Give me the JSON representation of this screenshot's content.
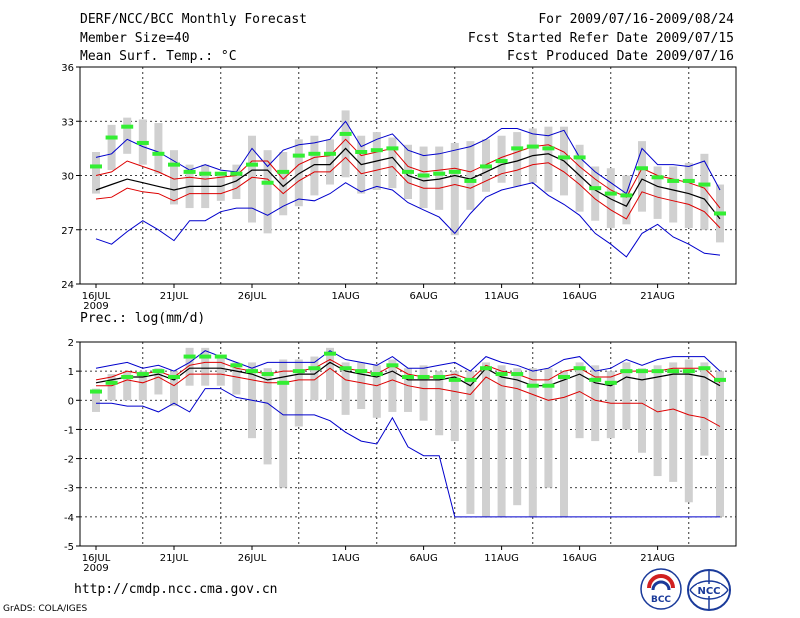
{
  "header": {
    "title": "DERF/NCC/BCC Monthly Forecast",
    "member_size": "Member Size=40",
    "variable": "Mean Surf. Temp.: °C",
    "period": "For 2009/07/16-2009/08/24",
    "started": "Fcst Started Refer Date 2009/07/15",
    "produced": "Fcst Produced Date 2009/07/16"
  },
  "footer": {
    "url": "http://cmdp.ncc.cma.gov.cn",
    "grads": "GrADS: COLA/IGES",
    "logo_bcc": "BCC",
    "logo_ncc": "NCC"
  },
  "colors": {
    "envelope": "#0000cc",
    "spread": "#dd0000",
    "mean": "#000000",
    "box": "#d0d0d0",
    "marker": "#33ee33"
  },
  "chart_data": [
    {
      "type": "line",
      "title": "Mean Surf. Temp.: °C",
      "ylim": [
        24,
        36
      ],
      "yticks": [
        24,
        27,
        30,
        33,
        36
      ],
      "xticks": [
        {
          "day": 0,
          "label": "16JUL",
          "sub": "2009"
        },
        {
          "day": 5,
          "label": "21JUL"
        },
        {
          "day": 10,
          "label": "26JUL"
        },
        {
          "day": 16,
          "label": "1AUG"
        },
        {
          "day": 21,
          "label": "6AUG"
        },
        {
          "day": 26,
          "label": "11AUG"
        },
        {
          "day": 31,
          "label": "16AUG"
        },
        {
          "day": 36,
          "label": "21AUG"
        }
      ],
      "series": [
        {
          "name": "max",
          "role": "envelope",
          "values": [
            31.0,
            31.2,
            32.0,
            31.6,
            31.3,
            30.8,
            30.3,
            30.6,
            30.3,
            30.2,
            31.5,
            30.5,
            31.4,
            31.7,
            31.8,
            32.0,
            33.0,
            31.6,
            32.0,
            32.3,
            31.4,
            31.1,
            31.2,
            31.4,
            31.6,
            32.0,
            32.6,
            32.6,
            32.3,
            32.2,
            32.5,
            31.0,
            30.2,
            29.6,
            29.0,
            31.5,
            30.6,
            30.6,
            30.5,
            30.8,
            29.2
          ]
        },
        {
          "name": "upper",
          "role": "spread",
          "values": [
            30.0,
            30.2,
            30.8,
            30.5,
            30.2,
            29.8,
            29.9,
            29.8,
            29.9,
            30.0,
            30.8,
            30.8,
            29.8,
            30.6,
            31.0,
            31.1,
            32.0,
            31.1,
            31.3,
            31.5,
            30.5,
            30.2,
            30.3,
            30.4,
            30.2,
            30.6,
            31.0,
            31.3,
            31.6,
            31.7,
            31.3,
            30.5,
            29.8,
            29.2,
            28.8,
            30.4,
            30.0,
            29.8,
            29.6,
            29.3,
            28.2
          ]
        },
        {
          "name": "mean",
          "role": "mean",
          "values": [
            29.2,
            29.5,
            29.8,
            29.6,
            29.4,
            29.2,
            29.4,
            29.4,
            29.4,
            29.7,
            30.3,
            30.3,
            29.4,
            30.1,
            30.6,
            30.6,
            31.5,
            30.6,
            30.8,
            31.0,
            30.0,
            29.7,
            29.8,
            30.0,
            29.8,
            30.2,
            30.6,
            30.8,
            31.1,
            31.2,
            30.8,
            30.0,
            29.2,
            28.7,
            28.3,
            29.8,
            29.4,
            29.2,
            29.0,
            28.7,
            27.6
          ]
        },
        {
          "name": "lower",
          "role": "spread",
          "values": [
            28.7,
            28.8,
            29.3,
            29.1,
            29.0,
            28.6,
            29.0,
            29.0,
            29.0,
            29.3,
            29.9,
            29.8,
            29.0,
            29.7,
            30.2,
            30.2,
            31.0,
            30.1,
            30.3,
            30.5,
            29.6,
            29.3,
            29.3,
            29.5,
            29.3,
            29.7,
            30.1,
            30.3,
            30.6,
            30.7,
            30.2,
            29.5,
            28.7,
            28.1,
            27.6,
            29.1,
            28.8,
            28.6,
            28.4,
            28.0,
            27.1
          ]
        },
        {
          "name": "min",
          "role": "envelope",
          "values": [
            26.5,
            26.2,
            26.9,
            27.5,
            27.0,
            26.4,
            27.5,
            27.5,
            28.0,
            28.2,
            28.2,
            27.8,
            28.3,
            28.7,
            28.6,
            29.0,
            29.6,
            29.1,
            29.4,
            29.2,
            28.5,
            28.1,
            27.7,
            26.8,
            27.9,
            28.8,
            29.2,
            29.4,
            29.6,
            28.9,
            28.4,
            27.8,
            26.8,
            26.2,
            25.5,
            26.8,
            27.3,
            26.6,
            26.2,
            25.7,
            25.6
          ]
        },
        {
          "name": "observed_marker",
          "role": "marker",
          "values": [
            30.5,
            32.1,
            32.7,
            31.8,
            31.2,
            30.6,
            30.2,
            30.1,
            30.1,
            30.1,
            30.6,
            29.6,
            30.2,
            31.1,
            31.2,
            31.2,
            32.3,
            31.3,
            31.4,
            31.5,
            30.2,
            30.0,
            30.1,
            30.2,
            29.7,
            30.5,
            30.8,
            31.5,
            31.6,
            31.5,
            31.0,
            31.0,
            29.3,
            29.0,
            28.9,
            30.4,
            29.9,
            29.7,
            29.7,
            29.5,
            27.9
          ]
        },
        {
          "name": "box_top",
          "role": "box",
          "values": [
            31.3,
            32.8,
            33.2,
            33.1,
            32.9,
            31.4,
            30.6,
            30.6,
            30.1,
            30.6,
            32.2,
            31.4,
            31.3,
            32.0,
            32.2,
            32.0,
            33.6,
            32.2,
            32.4,
            32.1,
            31.7,
            31.6,
            31.6,
            31.8,
            31.9,
            32.0,
            32.2,
            32.4,
            32.6,
            32.7,
            32.7,
            31.7,
            30.5,
            30.4,
            30.0,
            31.9,
            30.5,
            30.5,
            30.7,
            31.2,
            29.5
          ]
        },
        {
          "name": "box_bottom",
          "role": "box",
          "values": [
            29.0,
            30.3,
            31.2,
            30.6,
            30.1,
            28.4,
            28.2,
            28.2,
            28.6,
            28.7,
            27.4,
            26.8,
            27.8,
            28.3,
            28.9,
            29.5,
            29.9,
            29.0,
            29.2,
            29.3,
            28.7,
            28.2,
            28.1,
            26.7,
            28.1,
            29.1,
            29.6,
            29.4,
            29.6,
            29.1,
            28.9,
            28.0,
            27.5,
            27.1,
            27.3,
            28.0,
            27.6,
            27.4,
            27.1,
            27.0,
            26.3
          ]
        }
      ]
    },
    {
      "type": "line",
      "title": "Prec.: log(mm/d)",
      "ylim": [
        -5,
        2
      ],
      "yticks": [
        -5,
        -4,
        -3,
        -2,
        -1,
        0,
        1,
        2
      ],
      "xticks": [
        {
          "day": 0,
          "label": "16JUL",
          "sub": "2009"
        },
        {
          "day": 5,
          "label": "21JUL"
        },
        {
          "day": 10,
          "label": "26JUL"
        },
        {
          "day": 16,
          "label": "1AUG"
        },
        {
          "day": 21,
          "label": "6AUG"
        },
        {
          "day": 26,
          "label": "11AUG"
        },
        {
          "day": 31,
          "label": "16AUG"
        },
        {
          "day": 36,
          "label": "21AUG"
        }
      ],
      "series": [
        {
          "name": "max",
          "role": "envelope",
          "values": [
            1.1,
            1.2,
            1.3,
            1.1,
            1.2,
            1.0,
            1.3,
            1.7,
            1.5,
            1.3,
            1.1,
            1.3,
            1.3,
            1.3,
            1.3,
            1.7,
            1.4,
            1.3,
            1.2,
            1.5,
            1.1,
            1.1,
            1.2,
            1.3,
            1.0,
            1.5,
            1.3,
            1.2,
            1.0,
            1.1,
            1.4,
            1.5,
            1.0,
            1.1,
            1.4,
            1.2,
            1.4,
            1.5,
            1.5,
            1.5,
            1.0
          ]
        },
        {
          "name": "upper",
          "role": "spread",
          "values": [
            0.7,
            0.8,
            1.0,
            0.9,
            1.0,
            0.8,
            1.2,
            1.3,
            1.3,
            1.1,
            1.0,
            0.9,
            1.0,
            1.0,
            1.1,
            1.4,
            1.1,
            1.0,
            0.9,
            1.2,
            0.9,
            0.8,
            0.8,
            0.9,
            0.7,
            1.2,
            1.0,
            0.9,
            0.7,
            0.7,
            1.0,
            1.1,
            0.8,
            0.8,
            1.0,
            1.0,
            1.0,
            1.1,
            1.1,
            1.1,
            0.6
          ]
        },
        {
          "name": "mean",
          "role": "mean",
          "values": [
            0.6,
            0.7,
            0.8,
            0.8,
            0.9,
            0.7,
            1.1,
            1.1,
            1.1,
            1.0,
            0.9,
            0.7,
            0.8,
            0.9,
            0.9,
            1.3,
            1.0,
            0.9,
            0.8,
            1.0,
            0.7,
            0.7,
            0.7,
            0.8,
            0.5,
            1.1,
            0.8,
            0.7,
            0.5,
            0.5,
            0.7,
            0.9,
            0.6,
            0.5,
            0.8,
            0.7,
            0.8,
            0.9,
            0.9,
            0.8,
            0.5
          ]
        },
        {
          "name": "lower",
          "role": "spread",
          "values": [
            0.5,
            0.5,
            0.7,
            0.6,
            0.8,
            0.5,
            0.9,
            0.9,
            0.9,
            0.8,
            0.7,
            0.6,
            0.6,
            0.7,
            0.7,
            1.1,
            0.7,
            0.6,
            0.5,
            0.7,
            0.5,
            0.4,
            0.4,
            0.3,
            0.2,
            0.8,
            0.5,
            0.4,
            0.2,
            0.0,
            0.1,
            0.3,
            0.0,
            -0.1,
            -0.1,
            -0.1,
            -0.4,
            -0.3,
            -0.5,
            -0.6,
            -0.9
          ]
        },
        {
          "name": "min",
          "role": "envelope",
          "values": [
            -0.1,
            -0.1,
            -0.2,
            -0.2,
            -0.4,
            -0.1,
            -0.4,
            0.4,
            0.4,
            0.1,
            0.0,
            -0.1,
            -0.5,
            -0.5,
            -0.5,
            -0.7,
            -1.1,
            -1.4,
            -1.5,
            -0.6,
            -1.6,
            -1.9,
            -1.9,
            -4.0,
            -4.0,
            -4.0,
            -4.0,
            -4.0,
            -4.0,
            -4.0,
            -4.0,
            -4.0,
            -4.0,
            -4.0,
            -4.0,
            -4.0,
            -4.0,
            -4.0,
            -4.0,
            -4.0,
            -4.0
          ]
        },
        {
          "name": "observed_marker",
          "role": "marker",
          "values": [
            0.3,
            0.6,
            0.8,
            0.9,
            1.0,
            0.8,
            1.5,
            1.5,
            1.5,
            1.2,
            1.0,
            0.9,
            0.6,
            1.0,
            1.1,
            1.6,
            1.1,
            1.0,
            0.9,
            1.2,
            0.8,
            0.8,
            0.8,
            0.7,
            0.7,
            1.1,
            0.9,
            0.9,
            0.5,
            0.5,
            0.8,
            1.1,
            0.7,
            0.6,
            1.0,
            1.0,
            1.0,
            1.0,
            1.0,
            1.1,
            0.7
          ]
        },
        {
          "name": "box_top",
          "role": "box",
          "values": [
            0.4,
            0.9,
            1.0,
            1.0,
            1.1,
            1.0,
            1.8,
            1.8,
            1.5,
            1.3,
            1.3,
            1.1,
            1.4,
            1.4,
            1.5,
            1.8,
            1.3,
            1.3,
            1.2,
            1.4,
            1.1,
            1.2,
            1.0,
            1.0,
            1.0,
            1.3,
            1.2,
            1.1,
            1.1,
            1.1,
            1.0,
            1.3,
            1.2,
            1.0,
            1.3,
            1.1,
            1.2,
            1.3,
            1.4,
            1.3,
            1.0
          ]
        },
        {
          "name": "box_bottom",
          "role": "box",
          "values": [
            -0.4,
            0.0,
            0.0,
            0.0,
            0.2,
            -0.2,
            0.5,
            0.5,
            0.5,
            0.2,
            -1.3,
            -2.2,
            -3.0,
            -0.9,
            0.0,
            0.0,
            -0.5,
            -0.3,
            -0.6,
            -0.4,
            -0.4,
            -0.7,
            -1.2,
            -1.4,
            -3.9,
            -4.0,
            -4.0,
            -3.6,
            -4.0,
            -3.0,
            -4.0,
            -1.3,
            -1.4,
            -1.3,
            -1.0,
            -1.8,
            -2.6,
            -2.8,
            -3.5,
            -1.9,
            -4.0
          ]
        }
      ]
    }
  ]
}
